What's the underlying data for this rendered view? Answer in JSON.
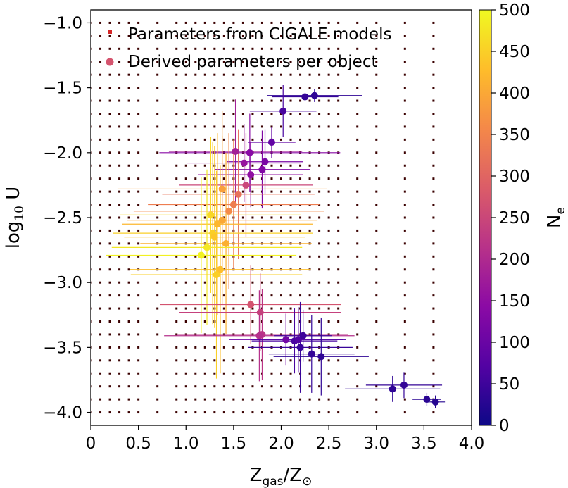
{
  "chart_data": {
    "type": "scatter",
    "x_axis": {
      "label_main": "Z",
      "label_sub1": "gas",
      "label_mid": "/Z",
      "label_sub2": "⊙",
      "lim": [
        0,
        4.0
      ],
      "ticks": [
        0,
        0.5,
        1.0,
        1.5,
        2.0,
        2.5,
        3.0,
        3.5,
        4.0
      ],
      "tick_labels": [
        "0",
        "0.5",
        "1.0",
        "1.5",
        "2.0",
        "2.5",
        "3.0",
        "3.5",
        "4.0"
      ]
    },
    "y_axis": {
      "label_main": "log",
      "label_sub": "10",
      "label_rest": " U",
      "lim": [
        -4.1,
        -0.9
      ],
      "ticks": [
        -1.0,
        -1.5,
        -2.0,
        -2.5,
        -3.0,
        -3.5,
        -4.0
      ],
      "tick_labels": [
        "−1.0",
        "−1.5",
        "−2.0",
        "−2.5",
        "−3.0",
        "−3.5",
        "−4.0"
      ]
    },
    "colorbar": {
      "label_main": "N",
      "label_sub": "e",
      "cmap": "plasma",
      "range": [
        0,
        500
      ],
      "ticks": [
        0,
        50,
        100,
        150,
        200,
        250,
        300,
        350,
        400,
        450,
        500
      ],
      "tick_labels": [
        "0",
        "50",
        "100",
        "150",
        "200",
        "250",
        "300",
        "350",
        "400",
        "450",
        "500"
      ]
    },
    "legend": {
      "placement": "top-left",
      "entries": [
        {
          "label": "Parameters from CIGALE models",
          "marker": "square",
          "color": "#d62728"
        },
        {
          "label": "Derived parameters per object",
          "marker": "circle",
          "color": "#d5546e"
        }
      ]
    },
    "model_grid": {
      "z_values": [
        0.0001,
        0.1,
        0.2,
        0.3,
        0.4,
        0.5,
        0.7,
        0.9,
        1.0,
        1.1,
        1.2,
        1.3,
        1.4,
        1.5,
        1.6,
        1.7,
        1.8,
        1.9,
        2.0,
        2.1,
        2.2,
        2.3,
        2.4,
        2.5,
        2.6,
        2.8,
        3.0,
        3.3,
        3.6
      ],
      "logu_values": [
        -1.0,
        -1.1,
        -1.2,
        -1.3,
        -1.4,
        -1.5,
        -1.6,
        -1.7,
        -1.8,
        -1.9,
        -2.0,
        -2.1,
        -2.2,
        -2.3,
        -2.4,
        -2.5,
        -2.6,
        -2.7,
        -2.8,
        -2.9,
        -3.0,
        -3.1,
        -3.2,
        -3.3,
        -3.4,
        -3.5,
        -3.6,
        -3.7,
        -3.8,
        -3.9,
        -4.0
      ],
      "color": "#3a0000"
    },
    "objects": [
      {
        "x": 2.25,
        "y": -1.57,
        "xerr": 0.35,
        "yerr": 0.0,
        "ne": 40
      },
      {
        "x": 2.35,
        "y": -1.56,
        "xerr": 0.5,
        "yerr": 0.05,
        "ne": 35
      },
      {
        "x": 2.02,
        "y": -1.68,
        "xerr": 0.35,
        "yerr": 0.2,
        "ne": 60
      },
      {
        "x": 1.9,
        "y": -1.92,
        "xerr": 0.25,
        "yerr": 0.12,
        "ne": 90
      },
      {
        "x": 1.52,
        "y": -1.99,
        "xerr": 0.7,
        "yerr": 0.4,
        "ne": 180
      },
      {
        "x": 1.67,
        "y": -2.0,
        "xerr": 0.95,
        "yerr": 0.3,
        "ne": 140
      },
      {
        "x": 1.61,
        "y": -2.08,
        "xerr": 0.6,
        "yerr": 0.3,
        "ne": 160
      },
      {
        "x": 1.83,
        "y": -2.07,
        "xerr": 0.4,
        "yerr": 0.25,
        "ne": 120
      },
      {
        "x": 1.8,
        "y": -2.13,
        "xerr": 0.5,
        "yerr": 0.3,
        "ne": 130
      },
      {
        "x": 1.68,
        "y": -2.17,
        "xerr": 0.55,
        "yerr": 0.25,
        "ne": 150
      },
      {
        "x": 1.63,
        "y": -2.25,
        "xerr": 0.7,
        "yerr": 0.4,
        "ne": 250
      },
      {
        "x": 1.38,
        "y": -2.28,
        "xerr": 1.1,
        "yerr": 0.6,
        "ne": 390
      },
      {
        "x": 1.55,
        "y": -2.32,
        "xerr": 0.8,
        "yerr": 0.5,
        "ne": 320
      },
      {
        "x": 1.5,
        "y": -2.4,
        "xerr": 0.9,
        "yerr": 0.5,
        "ne": 340
      },
      {
        "x": 1.45,
        "y": -2.45,
        "xerr": 1.0,
        "yerr": 0.6,
        "ne": 360
      },
      {
        "x": 1.38,
        "y": -2.52,
        "xerr": 1.0,
        "yerr": 0.65,
        "ne": 400
      },
      {
        "x": 1.33,
        "y": -2.55,
        "xerr": 1.0,
        "yerr": 0.7,
        "ne": 420
      },
      {
        "x": 1.28,
        "y": -2.62,
        "xerr": 1.05,
        "yerr": 0.7,
        "ne": 450
      },
      {
        "x": 1.26,
        "y": -2.48,
        "xerr": 0.95,
        "yerr": 0.6,
        "ne": 460
      },
      {
        "x": 1.3,
        "y": -2.65,
        "xerr": 0.95,
        "yerr": 0.7,
        "ne": 440
      },
      {
        "x": 1.42,
        "y": -2.7,
        "xerr": 0.9,
        "yerr": 0.7,
        "ne": 410
      },
      {
        "x": 1.22,
        "y": -2.73,
        "xerr": 1.0,
        "yerr": 0.6,
        "ne": 480
      },
      {
        "x": 1.16,
        "y": -2.79,
        "xerr": 1.0,
        "yerr": 0.6,
        "ne": 490
      },
      {
        "x": 1.36,
        "y": -2.9,
        "xerr": 0.95,
        "yerr": 0.8,
        "ne": 430
      },
      {
        "x": 1.32,
        "y": -2.94,
        "xerr": 0.9,
        "yerr": 0.8,
        "ne": 450
      },
      {
        "x": 1.68,
        "y": -3.17,
        "xerr": 0.95,
        "yerr": 0.3,
        "ne": 270
      },
      {
        "x": 1.78,
        "y": -3.23,
        "xerr": 0.85,
        "yerr": 0.3,
        "ne": 240
      },
      {
        "x": 1.8,
        "y": -3.4,
        "xerr": 0.9,
        "yerr": 0.35,
        "ne": 220
      },
      {
        "x": 1.77,
        "y": -3.41,
        "xerr": 1.0,
        "yerr": 0.35,
        "ne": 210
      },
      {
        "x": 2.05,
        "y": -3.44,
        "xerr": 0.6,
        "yerr": 0.2,
        "ne": 110
      },
      {
        "x": 2.14,
        "y": -3.45,
        "xerr": 0.45,
        "yerr": 0.25,
        "ne": 60
      },
      {
        "x": 2.18,
        "y": -3.44,
        "xerr": 0.5,
        "yerr": 0.25,
        "ne": 70
      },
      {
        "x": 2.23,
        "y": -3.41,
        "xerr": 0.3,
        "yerr": 0.2,
        "ne": 50
      },
      {
        "x": 2.2,
        "y": -3.5,
        "xerr": 0.55,
        "yerr": 0.35,
        "ne": 45
      },
      {
        "x": 2.32,
        "y": -3.55,
        "xerr": 0.45,
        "yerr": 0.3,
        "ne": 40
      },
      {
        "x": 2.42,
        "y": -3.57,
        "xerr": 0.5,
        "yerr": 0.3,
        "ne": 35
      },
      {
        "x": 3.17,
        "y": -3.82,
        "xerr": 0.5,
        "yerr": 0.1,
        "ne": 35
      },
      {
        "x": 3.29,
        "y": -3.79,
        "xerr": 0.4,
        "yerr": 0.1,
        "ne": 40
      },
      {
        "x": 3.53,
        "y": -3.9,
        "xerr": 0.15,
        "yerr": 0.05,
        "ne": 30
      },
      {
        "x": 3.62,
        "y": -3.92,
        "xerr": 0.1,
        "yerr": 0.05,
        "ne": 25
      }
    ]
  }
}
